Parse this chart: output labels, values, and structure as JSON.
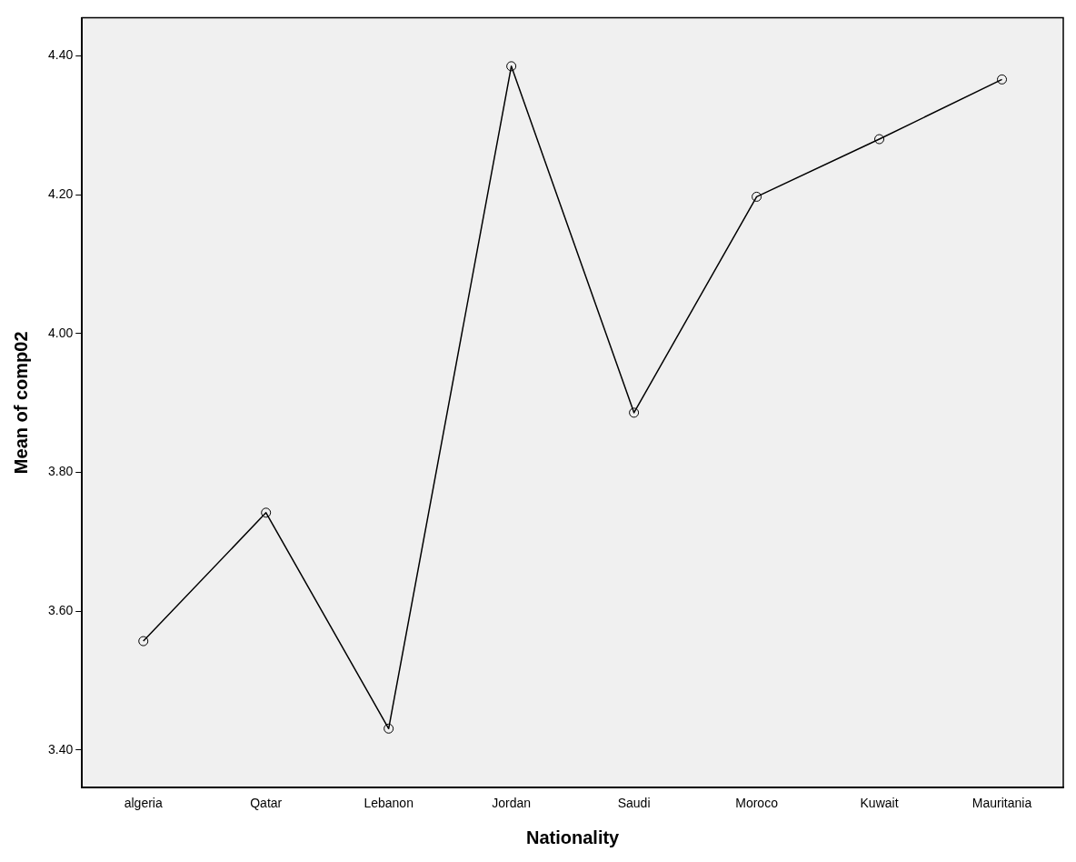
{
  "chart_data": {
    "type": "line",
    "xlabel": "Nationality",
    "ylabel": "Mean of comp02",
    "categories": [
      "algeria",
      "Qatar",
      "Lebanon",
      "Jordan",
      "Saudi",
      "Moroco",
      "Kuwait",
      "Mauritania"
    ],
    "series": [
      {
        "color": "#000000",
        "values": [
          3.557,
          3.742,
          3.431,
          4.385,
          3.886,
          4.197,
          4.28,
          4.366
        ]
      }
    ],
    "ylim": [
      3.346,
      4.455
    ],
    "yticks": [
      {
        "value": 3.4,
        "label": "3.40"
      },
      {
        "value": 3.6,
        "label": "3.60"
      },
      {
        "value": 3.8,
        "label": "3.80"
      },
      {
        "value": 4.0,
        "label": "4.00"
      },
      {
        "value": 4.2,
        "label": "4.20"
      },
      {
        "value": 4.4,
        "label": "4.40"
      }
    ],
    "grid": false,
    "legend": false,
    "marker": "circle",
    "line_style": "solid"
  }
}
